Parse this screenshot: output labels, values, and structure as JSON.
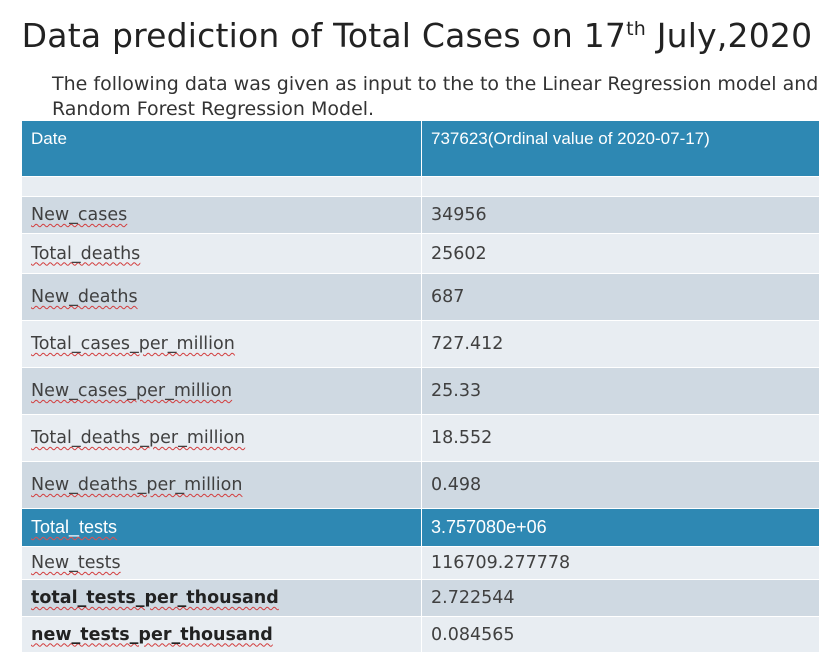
{
  "title": {
    "main": "Data prediction of Total Cases on 17",
    "superscript": "th",
    "suffix": " July,2020"
  },
  "intro": "The following data was given as input to the to the Linear Regression model and Random Forest Regression Model.",
  "table": {
    "header": {
      "label": "Date",
      "value": "737623(Ordinal value of 2020-07-17)"
    },
    "rows": [
      {
        "label": "New_cases",
        "value": "34956"
      },
      {
        "label": "Total_deaths",
        "value": "25602"
      },
      {
        "label": "New_deaths",
        "value": "687"
      },
      {
        "label": "Total_cases_per_million",
        "value": "727.412"
      },
      {
        "label": "New_cases_per_million",
        "value": "25.33"
      },
      {
        "label": "Total_deaths_per_million",
        "value": "18.552"
      },
      {
        "label": "New_deaths_per_million",
        "value": "0.498"
      },
      {
        "label": "Total_tests",
        "value": "3.757080e+06"
      },
      {
        "label": "New_tests",
        "value": "116709.277778"
      },
      {
        "label": "total_tests_per_thousand",
        "value": "2.722544"
      },
      {
        "label": "new_tests_per_thousand",
        "value": "0.084565"
      }
    ]
  },
  "colors": {
    "header_band": "#2e88b3",
    "row_dark": "#cfd9e2",
    "row_light": "#e8edf2",
    "spellcheck_underline": "#d23c3c"
  }
}
